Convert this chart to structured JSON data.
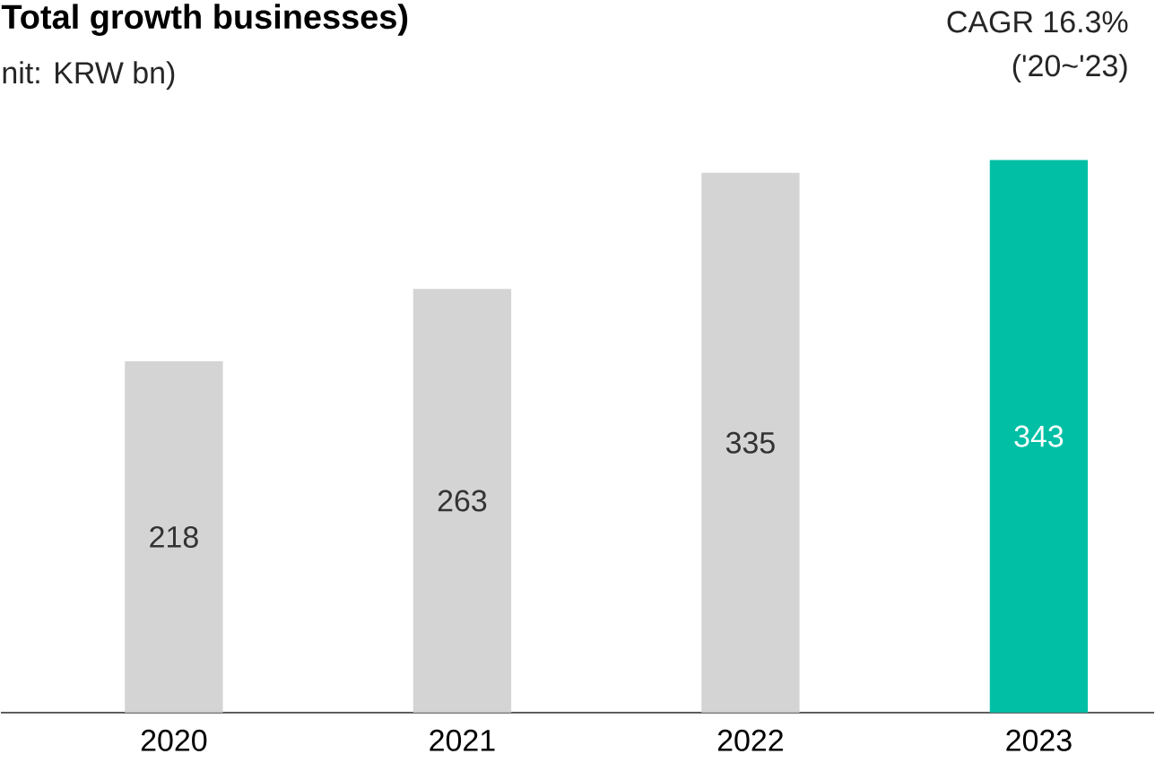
{
  "chart_data": {
    "type": "bar",
    "title": "Total growth businesses)",
    "subtitle": "nit: KRW bn)",
    "categories": [
      "2020",
      "2021",
      "2022",
      "2023"
    ],
    "values": [
      218,
      263,
      335,
      343
    ],
    "colors": [
      "#d4d4d4",
      "#d4d4d4",
      "#d4d4d4",
      "#00bfa5"
    ],
    "data_labels": true,
    "annotations": [
      "CAGR 16.3%",
      "('20~'23)"
    ]
  }
}
